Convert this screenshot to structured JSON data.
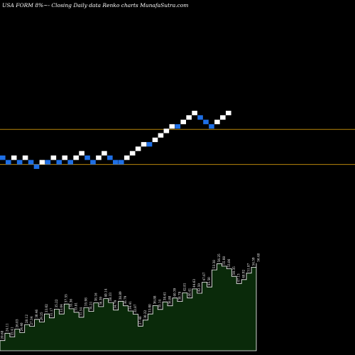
{
  "header": {
    "title": "USA FORM 8%~- Closing Daily data Renko charts MunafaSutra.com"
  },
  "colors": {
    "background": "#000000",
    "brick_up": "#ffffff",
    "brick_down": "#1e6fe6",
    "support_line": "#b8860b",
    "volume_fill": "#0a2a0a",
    "volume_stroke": "#ffffff"
  },
  "chart_data": [
    {
      "type": "renko",
      "brick_size_pct": 8,
      "brick_levels": [
        0,
        -1,
        0,
        -1,
        0,
        -1,
        -2,
        -1,
        -1,
        0,
        -1,
        0,
        -1,
        0,
        1,
        0,
        -1,
        0,
        1,
        0,
        -1,
        -1,
        0,
        1,
        2,
        3,
        3,
        4,
        5,
        6,
        7,
        7,
        8,
        9,
        10,
        9,
        8,
        7,
        8,
        9,
        10
      ],
      "brick_direction": [
        "down",
        "down",
        "up",
        "down",
        "up",
        "down",
        "down",
        "up",
        "down",
        "up",
        "down",
        "up",
        "down",
        "up",
        "up",
        "down",
        "down",
        "up",
        "up",
        "down",
        "down",
        "down",
        "up",
        "up",
        "up",
        "up",
        "down",
        "up",
        "up",
        "up",
        "up",
        "down",
        "up",
        "up",
        "up",
        "down",
        "down",
        "down",
        "up",
        "up",
        "up"
      ],
      "reference_levels": [
        6.5,
        -1.5
      ]
    },
    {
      "type": "area",
      "series": [
        {
          "values": [
            20.7,
            24.1,
            22.4,
            26.0,
            24.4,
            28.1,
            27.3,
            30.5,
            29.3,
            33.0,
            31.2,
            35.2,
            33.0,
            37.6,
            35.4,
            33.8,
            31.5,
            36.0,
            34.2,
            38.2,
            36.4,
            40.1,
            38.3,
            34.8,
            38.9,
            36.8,
            34.4,
            32.9,
            27.4,
            30.2,
            33.0,
            36.9,
            35.1,
            38.6,
            36.8,
            40.4,
            38.8,
            42.8,
            40.4,
            44.6,
            42.6,
            47.7,
            45.5,
            53.4,
            56.3,
            55.1,
            53.9,
            50.4,
            47.1,
            48.9,
            51.9,
            54.6,
            56.5
          ],
          "labels": [
            "20.68",
            "24.11",
            "22.41",
            "26.03",
            "24.40",
            "28.12",
            "27.34",
            "30.46",
            "29.25",
            "33.02",
            "31.17",
            "35.22",
            "33.04",
            "37.55",
            "35.36",
            "33.81",
            "31.54",
            "35.98",
            "34.21",
            "38.16",
            "36.39",
            "40.14",
            "38.33",
            "34.79",
            "38.89",
            "36.79",
            "34.41",
            "32.87",
            "27.40",
            "30.22",
            "33.00",
            "36.88",
            "35.14",
            "38.61",
            "36.80",
            "40.39",
            "38.78",
            "42.81",
            "40.41",
            "44.63",
            "42.59",
            "47.67",
            "45.50",
            "53.38",
            "56.25",
            "55.08",
            "53.86",
            "50.35",
            "47.13",
            "48.92",
            "51.87",
            "54.59",
            "56.48"
          ]
        }
      ]
    }
  ]
}
